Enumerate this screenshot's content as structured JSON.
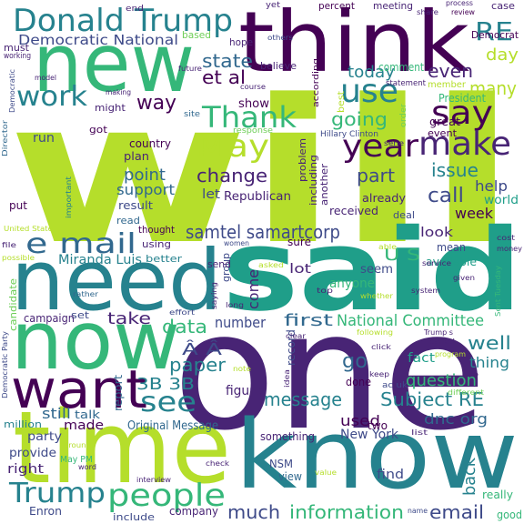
{
  "palette": {
    "dark_purple": "#440154",
    "purple": "#482475",
    "indigo": "#3e4a89",
    "blue": "#31688e",
    "teal": "#26828e",
    "green": "#1f9e89",
    "light_green": "#35b779",
    "lime": "#6ece58",
    "yellow_green": "#b5de2b",
    "yellow": "#fde725"
  },
  "words": [
    {
      "text": "will",
      "color": "#b5de2b"
    },
    {
      "text": "said",
      "color": "#1f9e89"
    },
    {
      "text": "one",
      "color": "#482475"
    },
    {
      "text": "know",
      "color": "#26828e"
    },
    {
      "text": "time",
      "color": "#b5de2b"
    },
    {
      "text": "need",
      "color": "#26828e"
    },
    {
      "text": "now",
      "color": "#35b779"
    },
    {
      "text": "new",
      "color": "#35b779"
    },
    {
      "text": "think",
      "color": "#440154"
    },
    {
      "text": "want",
      "color": "#440154"
    },
    {
      "text": "Donald Trump",
      "color": "#26828e"
    },
    {
      "text": "work",
      "color": "#26828e"
    },
    {
      "text": "Thank",
      "color": "#35b779"
    },
    {
      "text": "May",
      "color": "#b5de2b"
    },
    {
      "text": "year",
      "color": "#440154"
    },
    {
      "text": "use",
      "color": "#26828e"
    },
    {
      "text": "say",
      "color": "#440154"
    },
    {
      "text": "make",
      "color": "#482475"
    },
    {
      "text": "RE",
      "color": "#26828e"
    },
    {
      "text": "Democratic National",
      "color": "#3e4a89"
    },
    {
      "text": "state",
      "color": "#31688e"
    },
    {
      "text": "et al",
      "color": "#440154"
    },
    {
      "text": "today",
      "color": "#26828e"
    },
    {
      "text": "even",
      "color": "#482475"
    },
    {
      "text": "day",
      "color": "#b5de2b"
    },
    {
      "text": "many",
      "color": "#b5de2b"
    },
    {
      "text": "way",
      "color": "#440154"
    },
    {
      "text": "going",
      "color": "#35b779"
    },
    {
      "text": "e mail",
      "color": "#31688e"
    },
    {
      "text": "samtel samartcorp",
      "color": "#3e4a89"
    },
    {
      "text": "see",
      "color": "#26828e"
    },
    {
      "text": "people",
      "color": "#35b779"
    },
    {
      "text": "Trump",
      "color": "#26828e"
    },
    {
      "text": "much",
      "color": "#3e4a89"
    },
    {
      "text": "information",
      "color": "#35b779"
    },
    {
      "text": "email",
      "color": "#3e4a89"
    },
    {
      "text": "Subject RE",
      "color": "#26828e"
    },
    {
      "text": "message",
      "color": "#26828e"
    },
    {
      "text": "question",
      "color": "#35b779"
    },
    {
      "text": "back",
      "color": "#26828e"
    },
    {
      "text": "National Committee",
      "color": "#35b779"
    },
    {
      "text": "first",
      "color": "#31688e"
    },
    {
      "text": "well",
      "color": "#26828e"
    },
    {
      "text": "go",
      "color": "#31688e"
    },
    {
      "text": "thing",
      "color": "#26828e"
    },
    {
      "text": "paper",
      "color": "#26828e"
    },
    {
      "text": "data",
      "color": "#35b779"
    },
    {
      "text": "3B 3B",
      "color": "#26828e"
    },
    {
      "text": "Â Â",
      "color": "#3e4a89"
    },
    {
      "text": "take",
      "color": "#482475"
    },
    {
      "text": "used",
      "color": "#440154"
    },
    {
      "text": "dnc org",
      "color": "#31688e"
    },
    {
      "text": "change",
      "color": "#482475"
    },
    {
      "text": "point",
      "color": "#31688e"
    },
    {
      "text": "support",
      "color": "#31688e"
    },
    {
      "text": "part",
      "color": "#3e4a89"
    },
    {
      "text": "issue",
      "color": "#26828e"
    },
    {
      "text": "call",
      "color": "#3e4a89"
    },
    {
      "text": "help",
      "color": "#3e4a89"
    },
    {
      "text": "world",
      "color": "#1f9e89"
    },
    {
      "text": "week",
      "color": "#440154"
    },
    {
      "text": "look",
      "color": "#482475"
    },
    {
      "text": "U S",
      "color": "#35b779"
    },
    {
      "text": "lot",
      "color": "#482475"
    },
    {
      "text": "seem",
      "color": "#3e4a89"
    },
    {
      "text": "come",
      "color": "#482475"
    },
    {
      "text": "number",
      "color": "#3e4a89"
    },
    {
      "text": "Miranda Luis",
      "color": "#26828e"
    },
    {
      "text": "still",
      "color": "#31688e"
    },
    {
      "text": "made",
      "color": "#440154"
    },
    {
      "text": "right",
      "color": "#482475"
    },
    {
      "text": "Enron",
      "color": "#3e4a89"
    },
    {
      "text": "company",
      "color": "#482475"
    },
    {
      "text": "include",
      "color": "#3e4a89"
    },
    {
      "text": "good",
      "color": "#35b779"
    },
    {
      "text": "really",
      "color": "#35b779"
    },
    {
      "text": "find",
      "color": "#3e4a89"
    },
    {
      "text": "two",
      "color": "#440154"
    },
    {
      "text": "New York",
      "color": "#3e4a89"
    },
    {
      "text": "something",
      "color": "#482475"
    },
    {
      "text": "view",
      "color": "#31688e"
    },
    {
      "text": "NSM",
      "color": "#3e4a89"
    },
    {
      "text": "Original Message",
      "color": "#31688e"
    },
    {
      "text": "party",
      "color": "#3e4a89"
    },
    {
      "text": "provide",
      "color": "#3e4a89"
    },
    {
      "text": "million",
      "color": "#26828e"
    },
    {
      "text": "talk",
      "color": "#31688e"
    },
    {
      "text": "report",
      "color": "#31688e"
    },
    {
      "text": "figure",
      "color": "#482475"
    },
    {
      "text": "record",
      "color": "#3e4a89"
    },
    {
      "text": "done",
      "color": "#440154"
    },
    {
      "text": "fact",
      "color": "#1f9e89"
    },
    {
      "text": "anyone",
      "color": "#35b779"
    },
    {
      "text": "candidate",
      "color": "#6ece58"
    },
    {
      "text": "campaign",
      "color": "#482475"
    },
    {
      "text": "set",
      "color": "#3e4a89"
    },
    {
      "text": "Republican",
      "color": "#482475"
    },
    {
      "text": "let",
      "color": "#3e4a89"
    },
    {
      "text": "country",
      "color": "#440154"
    },
    {
      "text": "plan",
      "color": "#482475"
    },
    {
      "text": "run",
      "color": "#3e4a89"
    },
    {
      "text": "put",
      "color": "#440154"
    },
    {
      "text": "result",
      "color": "#3e4a89"
    },
    {
      "text": "read",
      "color": "#31688e"
    },
    {
      "text": "thought",
      "color": "#440154"
    },
    {
      "text": "using",
      "color": "#482475"
    },
    {
      "text": "better",
      "color": "#26828e"
    },
    {
      "text": "group",
      "color": "#3e4a89"
    },
    {
      "text": "send",
      "color": "#482475"
    },
    {
      "text": "sure",
      "color": "#440154"
    },
    {
      "text": "mean",
      "color": "#3e4a89"
    },
    {
      "text": "available",
      "color": "#1f9e89"
    },
    {
      "text": "received",
      "color": "#482475"
    },
    {
      "text": "already",
      "color": "#482475"
    },
    {
      "text": "deal",
      "color": "#3e4a89"
    },
    {
      "text": "another",
      "color": "#482475"
    },
    {
      "text": "including",
      "color": "#482475"
    },
    {
      "text": "problem",
      "color": "#482475"
    },
    {
      "text": "show",
      "color": "#440154"
    },
    {
      "text": "believe",
      "color": "#482475"
    },
    {
      "text": "comment",
      "color": "#35b779"
    },
    {
      "text": "hope",
      "color": "#482475"
    },
    {
      "text": "based",
      "color": "#6ece58"
    },
    {
      "text": "must",
      "color": "#482475"
    },
    {
      "text": "working",
      "color": "#482475"
    },
    {
      "text": "might",
      "color": "#482475"
    },
    {
      "text": "got",
      "color": "#440154"
    },
    {
      "text": "member",
      "color": "#b5de2b"
    },
    {
      "text": "President",
      "color": "#35b779"
    },
    {
      "text": "great",
      "color": "#440154"
    },
    {
      "text": "event",
      "color": "#440154"
    },
    {
      "text": "Hillary Clinton",
      "color": "#3e4a89"
    },
    {
      "text": "percent",
      "color": "#440154"
    },
    {
      "text": "meeting",
      "color": "#482475"
    },
    {
      "text": "case",
      "color": "#482475"
    },
    {
      "text": "Democrat",
      "color": "#440154"
    },
    {
      "text": "end",
      "color": "#482475"
    },
    {
      "text": "yet",
      "color": "#482475"
    },
    {
      "text": "process",
      "color": "#482475"
    },
    {
      "text": "review",
      "color": "#440154"
    },
    {
      "text": "share",
      "color": "#482475"
    },
    {
      "text": "others",
      "color": "#3e4a89"
    },
    {
      "text": "according",
      "color": "#440154"
    },
    {
      "text": "statement",
      "color": "#482475"
    },
    {
      "text": "best",
      "color": "#b5de2b"
    },
    {
      "text": "order",
      "color": "#6ece58"
    },
    {
      "text": "Director",
      "color": "#31688e"
    },
    {
      "text": "Democratic",
      "color": "#3e4a89"
    },
    {
      "text": "model",
      "color": "#482475"
    },
    {
      "text": "making",
      "color": "#482475"
    },
    {
      "text": "future",
      "color": "#482475"
    },
    {
      "text": "course",
      "color": "#482475"
    },
    {
      "text": "response",
      "color": "#6ece58"
    },
    {
      "text": "site",
      "color": "#31688e"
    },
    {
      "text": "important",
      "color": "#26828e"
    },
    {
      "text": "United State",
      "color": "#b5de2b"
    },
    {
      "text": "file",
      "color": "#482475"
    },
    {
      "text": "possible",
      "color": "#b5de2b"
    },
    {
      "text": "women",
      "color": "#3e4a89"
    },
    {
      "text": "able",
      "color": "#b5de2b"
    },
    {
      "text": "cost",
      "color": "#482475"
    },
    {
      "text": "money",
      "color": "#482475"
    },
    {
      "text": "service",
      "color": "#482475"
    },
    {
      "text": "given",
      "color": "#482475"
    },
    {
      "text": "asked",
      "color": "#b5de2b"
    },
    {
      "text": "top",
      "color": "#482475"
    },
    {
      "text": "whether",
      "color": "#b5de2b"
    },
    {
      "text": "system",
      "color": "#482475"
    },
    {
      "text": "Sent Tuesday",
      "color": "#35b779"
    },
    {
      "text": "rather",
      "color": "#31688e"
    },
    {
      "text": "effort",
      "color": "#3e4a89"
    },
    {
      "text": "saying",
      "color": "#482475"
    },
    {
      "text": "long",
      "color": "#482475"
    },
    {
      "text": "clear",
      "color": "#482475"
    },
    {
      "text": "following",
      "color": "#b5de2b"
    },
    {
      "text": "click",
      "color": "#482475"
    },
    {
      "text": "Trump s",
      "color": "#482475"
    },
    {
      "text": "called",
      "color": "#482475"
    },
    {
      "text": "program",
      "color": "#b5de2b"
    },
    {
      "text": "job",
      "color": "#482475"
    },
    {
      "text": "Democratic Party",
      "color": "#3e4a89"
    },
    {
      "text": "note",
      "color": "#b5de2b"
    },
    {
      "text": "idea",
      "color": "#482475"
    },
    {
      "text": "keep",
      "color": "#482475"
    },
    {
      "text": "ac uk",
      "color": "#3e4a89"
    },
    {
      "text": "different",
      "color": "#6ece58"
    },
    {
      "text": "list",
      "color": "#482475"
    },
    {
      "text": "around",
      "color": "#b5de2b"
    },
    {
      "text": "May PM",
      "color": "#35b779"
    },
    {
      "text": "word",
      "color": "#482475"
    },
    {
      "text": "interview",
      "color": "#482475"
    },
    {
      "text": "check",
      "color": "#482475"
    },
    {
      "text": "value",
      "color": "#b5de2b"
    },
    {
      "text": "name",
      "color": "#3e4a89"
    },
    {
      "text": "serie",
      "color": "#482475"
    }
  ]
}
